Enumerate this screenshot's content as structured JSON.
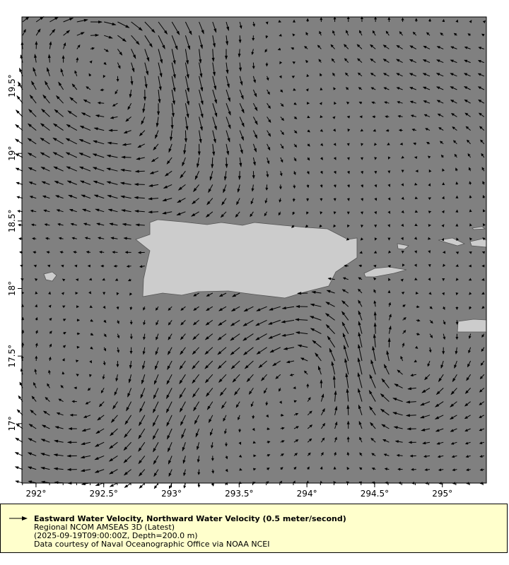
{
  "map": {
    "projection": "lon/lat",
    "lon_range": [
      291.896,
      295.325
    ],
    "lat_range": [
      16.56,
      20.01
    ],
    "lon_ticks": [
      "292°",
      "292.5°",
      "293°",
      "293.5°",
      "294°",
      "294.5°",
      "295°"
    ],
    "lon_tick_values": [
      292,
      292.5,
      293,
      293.5,
      294,
      294.5,
      295
    ],
    "lat_ticks": [
      "17°",
      "17.5°",
      "18°",
      "18.5°",
      "19°",
      "19.5°"
    ],
    "lat_tick_values": [
      17,
      17.5,
      18,
      18.5,
      19,
      19.5
    ],
    "ocean_color": "#808080",
    "land_color": "#cccccc",
    "vector_color": "#000000"
  },
  "legend": {
    "title": "Eastward Water Velocity, Northward Water Velocity (0.5 meter/second)",
    "dataset": "Regional NCOM AMSEAS 3D (Latest)",
    "time_depth": "(2025-09-19T09:00:00Z, Depth=200.0 m)",
    "credit": "Data courtesy of Naval Oceanographic Office via NOAA NCEI",
    "background": "#ffffcc"
  }
}
